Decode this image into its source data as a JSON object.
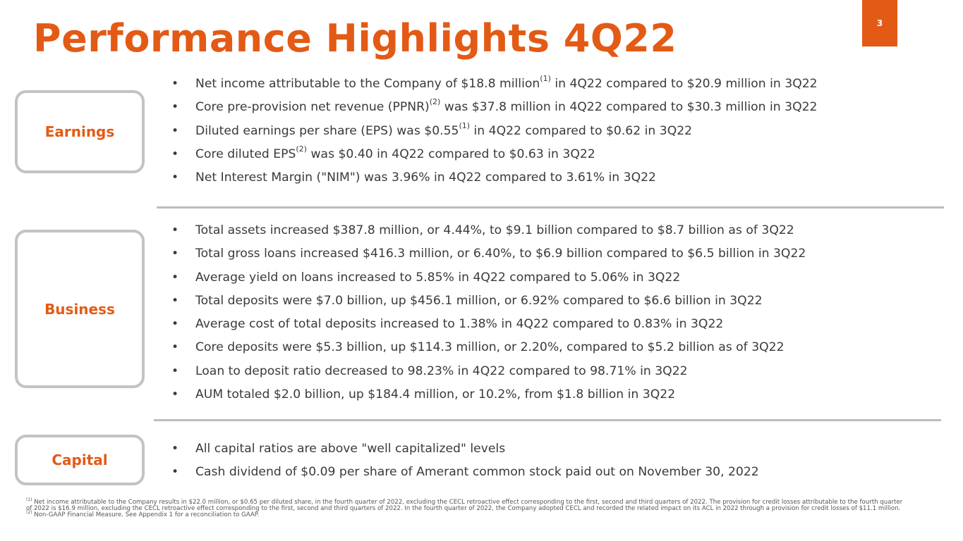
{
  "slide": {
    "title": "Performance Highlights 4Q22",
    "page_number": "3",
    "accent_color": "#e35a15"
  },
  "sections": {
    "earnings": {
      "label": "Earnings",
      "bullets": [
        {
          "pre": "Net income attributable to the Company of $18.8 million",
          "sup": "(1)",
          "post": " in 4Q22 compared to $20.9 million in 3Q22"
        },
        {
          "pre": "Core pre-provision net revenue (PPNR)",
          "sup": "(2)",
          "post": " was $37.8 million in 4Q22 compared to $30.3 million in 3Q22"
        },
        {
          "pre": "Diluted earnings per share (EPS) was $0.55",
          "sup": "(1)",
          "post": " in 4Q22 compared to $0.62 in 3Q22"
        },
        {
          "pre": "Core diluted EPS",
          "sup": "(2)",
          "post": " was $0.40 in 4Q22 compared to $0.63 in 3Q22"
        },
        {
          "pre": "Net Interest Margin (\"NIM\") was 3.96% in 4Q22 compared to 3.61% in 3Q22"
        }
      ]
    },
    "business": {
      "label": "Business",
      "bullets": [
        {
          "pre": "Total assets increased $387.8 million, or 4.44%, to $9.1 billion compared to $8.7 billion as of 3Q22"
        },
        {
          "pre": "Total gross loans increased $416.3 million, or 6.40%, to $6.9 billion compared to $6.5 billion in 3Q22"
        },
        {
          "pre": "Average yield on loans increased to 5.85% in 4Q22 compared to 5.06% in 3Q22"
        },
        {
          "pre": "Total deposits were $7.0 billion, up $456.1 million, or 6.92% compared to $6.6 billion in 3Q22"
        },
        {
          "pre": "Average cost of total deposits increased to 1.38% in 4Q22 compared to 0.83% in 3Q22"
        },
        {
          "pre": "Core deposits were $5.3 billion, up $114.3 million, or 2.20%, compared to $5.2 billion as of 3Q22"
        },
        {
          "pre": "Loan to deposit ratio decreased to 98.23% in 4Q22 compared to 98.71% in 3Q22"
        },
        {
          "pre": "AUM totaled $2.0 billion, up $184.4 million, or 10.2%, from $1.8 billion in 3Q22"
        }
      ]
    },
    "capital": {
      "label": "Capital",
      "bullets": [
        {
          "pre": "All capital ratios are above \"well capitalized\" levels"
        },
        {
          "pre": "Cash dividend of $0.09 per share of Amerant common stock paid out on November 30, 2022"
        }
      ]
    }
  },
  "footnotes": [
    {
      "sup": "(1)",
      "text": " Net income attributable to the Company results in $22.0 million, or $0.65 per diluted share, in the fourth quarter of 2022, excluding the CECL retroactive effect corresponding to the first, second and third quarters of 2022. The provision for credit losses attributable to the fourth quarter of 2022 is $16.9 million, excluding the CECL retroactive effect corresponding to the first, second and third quarters of 2022. In the fourth quarter of 2022, the Company adopted CECL and recorded the related impact on its ACL in 2022 through a provision for credit losses of $11.1 million."
    },
    {
      "sup": "(2)",
      "text": " Non-GAAP Financial Measure. See Appendix 1 for a reconciliation to GAAP."
    }
  ]
}
